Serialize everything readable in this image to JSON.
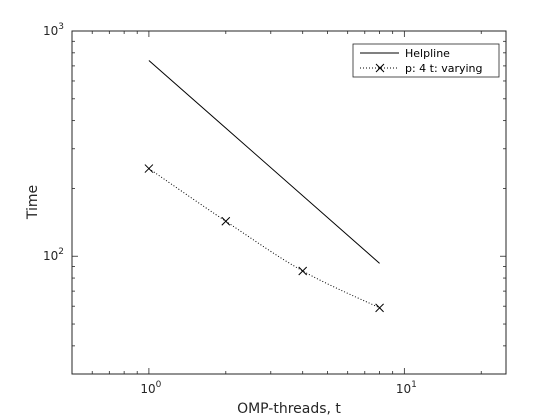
{
  "chart_data": {
    "type": "line",
    "xlabel": "OMP-threads, t",
    "ylabel": "Time",
    "x_scale": "log",
    "y_scale": "log",
    "xlim": [
      0.5,
      25
    ],
    "ylim": [
      30,
      1000
    ],
    "x_ticks": [
      {
        "value": 1,
        "base": "10",
        "exp": "0"
      },
      {
        "value": 10,
        "base": "10",
        "exp": "1"
      }
    ],
    "y_ticks": [
      {
        "value": 100,
        "base": "10",
        "exp": "2"
      },
      {
        "value": 1000,
        "base": "10",
        "exp": "3"
      }
    ],
    "grid": false,
    "legend_position": "top-right",
    "series": [
      {
        "name": "Helpline",
        "style": "solid",
        "marker": "none",
        "color": "#000000",
        "x": [
          1,
          8
        ],
        "y": [
          740,
          93
        ]
      },
      {
        "name": "p: 4 t: varying",
        "style": "dotted",
        "marker": "x",
        "color": "#000000",
        "x": [
          1,
          2,
          4,
          8
        ],
        "y": [
          245,
          143,
          86,
          59
        ]
      }
    ]
  }
}
